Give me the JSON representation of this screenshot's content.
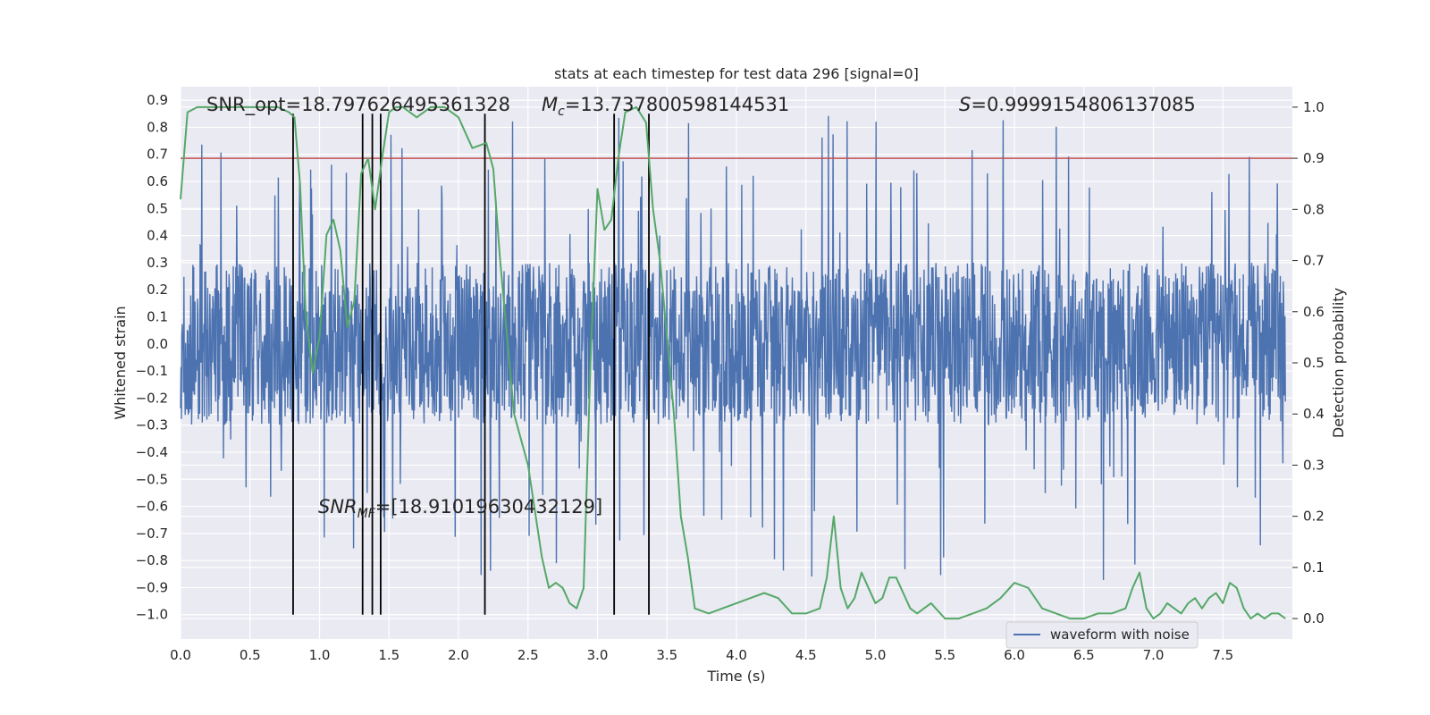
{
  "chart_data": {
    "type": "line",
    "title": "stats at each timestep for test data 296 [signal=0]",
    "xlabel": "Time (s)",
    "ylabel": "Whitened strain",
    "y2label": "Detection probability",
    "xlim": [
      0.0,
      8.0
    ],
    "ylim": [
      -1.09,
      0.95
    ],
    "y2lim": [
      -0.04,
      1.04
    ],
    "x_ticks": [
      0.0,
      0.5,
      1.0,
      1.5,
      2.0,
      2.5,
      3.0,
      3.5,
      4.0,
      4.5,
      5.0,
      5.5,
      6.0,
      6.5,
      7.0,
      7.5
    ],
    "y_ticks": [
      -1.0,
      -0.9,
      -0.8,
      -0.7,
      -0.6,
      -0.5,
      -0.4,
      -0.3,
      -0.2,
      -0.1,
      0.0,
      0.1,
      0.2,
      0.3,
      0.4,
      0.5,
      0.6,
      0.7,
      0.8,
      0.9
    ],
    "y2_ticks": [
      0.0,
      0.1,
      0.2,
      0.3,
      0.4,
      0.5,
      0.6,
      0.7,
      0.8,
      0.9,
      1.0
    ],
    "grid": true,
    "legend_position": "bottom-right",
    "series": [
      {
        "name": "waveform with noise",
        "axis": "left",
        "color": "#4c72b0",
        "style": "dense noise, mostly within -0.26 to 0.29 with spikes to about 0.88 and -1.0"
      },
      {
        "axis": "right",
        "color": "#55a868",
        "x": [
          0.0,
          0.05,
          0.12,
          0.2,
          0.3,
          0.4,
          0.5,
          0.6,
          0.7,
          0.78,
          0.82,
          0.86,
          0.9,
          0.95,
          1.0,
          1.05,
          1.1,
          1.15,
          1.2,
          1.25,
          1.3,
          1.35,
          1.4,
          1.45,
          1.5,
          1.55,
          1.6,
          1.7,
          1.8,
          1.9,
          2.0,
          2.1,
          2.2,
          2.25,
          2.3,
          2.35,
          2.4,
          2.5,
          2.6,
          2.65,
          2.7,
          2.75,
          2.8,
          2.85,
          2.9,
          2.95,
          3.0,
          3.05,
          3.1,
          3.15,
          3.2,
          3.28,
          3.35,
          3.4,
          3.45,
          3.5,
          3.55,
          3.6,
          3.65,
          3.7,
          3.8,
          3.9,
          4.0,
          4.1,
          4.2,
          4.3,
          4.4,
          4.5,
          4.6,
          4.65,
          4.7,
          4.75,
          4.8,
          4.85,
          4.9,
          4.95,
          5.0,
          5.05,
          5.1,
          5.15,
          5.2,
          5.25,
          5.3,
          5.35,
          5.4,
          5.5,
          5.6,
          5.7,
          5.8,
          5.9,
          6.0,
          6.1,
          6.2,
          6.3,
          6.4,
          6.5,
          6.6,
          6.7,
          6.8,
          6.85,
          6.9,
          6.95,
          7.0,
          7.05,
          7.1,
          7.15,
          7.2,
          7.25,
          7.3,
          7.35,
          7.4,
          7.45,
          7.5,
          7.55,
          7.6,
          7.65,
          7.7,
          7.75,
          7.8,
          7.85,
          7.9,
          7.95
        ],
        "values": [
          0.82,
          0.99,
          1.0,
          1.0,
          1.0,
          1.0,
          1.0,
          1.0,
          1.0,
          0.99,
          0.98,
          0.85,
          0.6,
          0.48,
          0.55,
          0.75,
          0.78,
          0.72,
          0.57,
          0.62,
          0.87,
          0.9,
          0.8,
          0.9,
          0.99,
          1.0,
          1.0,
          0.98,
          1.0,
          1.0,
          0.98,
          0.92,
          0.93,
          0.88,
          0.7,
          0.55,
          0.4,
          0.3,
          0.12,
          0.06,
          0.07,
          0.06,
          0.03,
          0.02,
          0.06,
          0.5,
          0.84,
          0.76,
          0.78,
          0.9,
          0.99,
          1.0,
          0.97,
          0.8,
          0.7,
          0.55,
          0.4,
          0.2,
          0.12,
          0.02,
          0.01,
          0.02,
          0.03,
          0.04,
          0.05,
          0.04,
          0.01,
          0.01,
          0.02,
          0.08,
          0.2,
          0.06,
          0.02,
          0.04,
          0.09,
          0.06,
          0.03,
          0.04,
          0.08,
          0.08,
          0.05,
          0.02,
          0.01,
          0.02,
          0.03,
          0.0,
          0.0,
          0.01,
          0.02,
          0.04,
          0.07,
          0.06,
          0.02,
          0.01,
          0.0,
          0.0,
          0.01,
          0.01,
          0.02,
          0.06,
          0.09,
          0.02,
          0.0,
          0.01,
          0.03,
          0.02,
          0.01,
          0.03,
          0.04,
          0.02,
          0.04,
          0.05,
          0.03,
          0.07,
          0.06,
          0.02,
          0.0,
          0.01,
          0.0,
          0.01,
          0.01,
          0.0
        ]
      }
    ],
    "threshold_line": {
      "axis": "right",
      "value": 0.9,
      "color": "#c44e52"
    },
    "vertical_markers": {
      "x": [
        0.81,
        1.31,
        1.38,
        1.44,
        2.19,
        3.12,
        3.37
      ],
      "y_range": [
        -1.0,
        0.85
      ],
      "color": "#000000"
    },
    "annotations": {
      "snr_opt": "SNR_opt=18.797626495361328",
      "mc_symbol": "M",
      "mc_sub": "c",
      "mc_value": "=13.737800598144531",
      "s_symbol": "S",
      "s_value": "=0.9999154806137085",
      "snr_mf_symbol": "SNR",
      "snr_mf_sub": "MF",
      "snr_mf_value": "=[18.91019630432129]"
    }
  }
}
